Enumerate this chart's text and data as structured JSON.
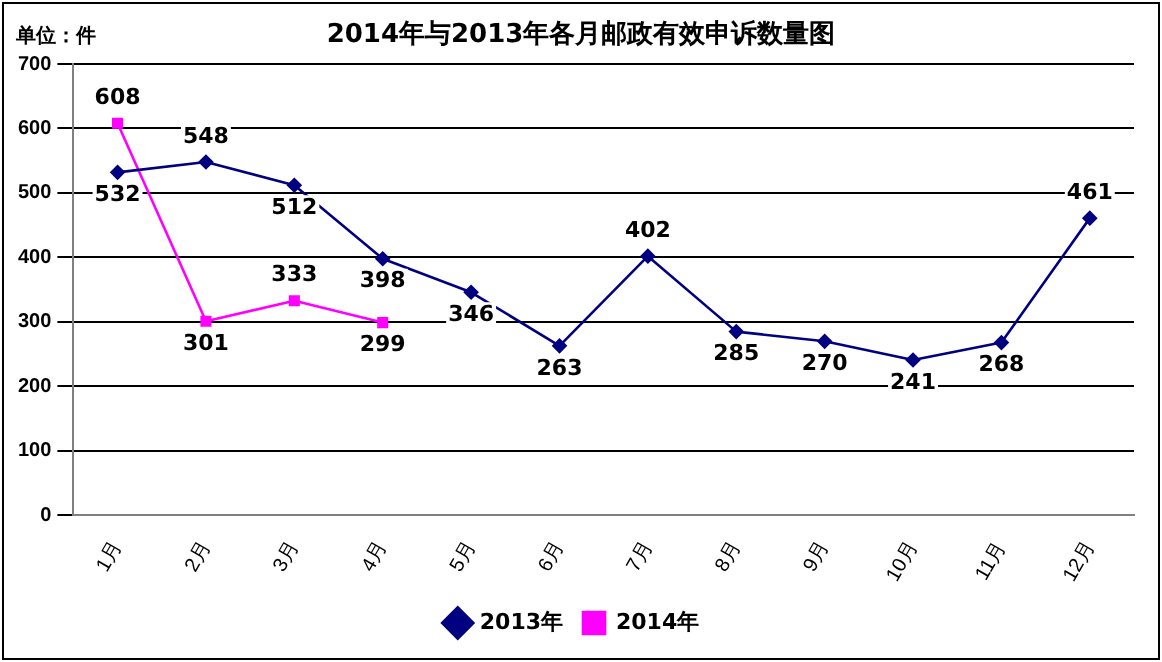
{
  "chart_data": {
    "type": "line",
    "title": "2014年与2013年各月邮政有效申诉数量图",
    "ylabel": "单位：件",
    "categories": [
      "1月",
      "2月",
      "3月",
      "4月",
      "5月",
      "6月",
      "7月",
      "8月",
      "9月",
      "10月",
      "11月",
      "12月"
    ],
    "series": [
      {
        "name": "2013年",
        "color": "#000080",
        "marker": "diamond",
        "values": [
          532,
          548,
          512,
          398,
          346,
          263,
          402,
          285,
          270,
          241,
          268,
          461
        ]
      },
      {
        "name": "2014年",
        "color": "#ff00ff",
        "marker": "square",
        "values": [
          608,
          301,
          333,
          299,
          null,
          null,
          null,
          null,
          null,
          null,
          null,
          null
        ]
      }
    ],
    "ylim": [
      0,
      700
    ],
    "yticks": [
      0,
      100,
      200,
      300,
      400,
      500,
      600,
      700
    ],
    "grid": "y",
    "legend": "bottom",
    "data_labels": true,
    "line_style": "solid"
  }
}
